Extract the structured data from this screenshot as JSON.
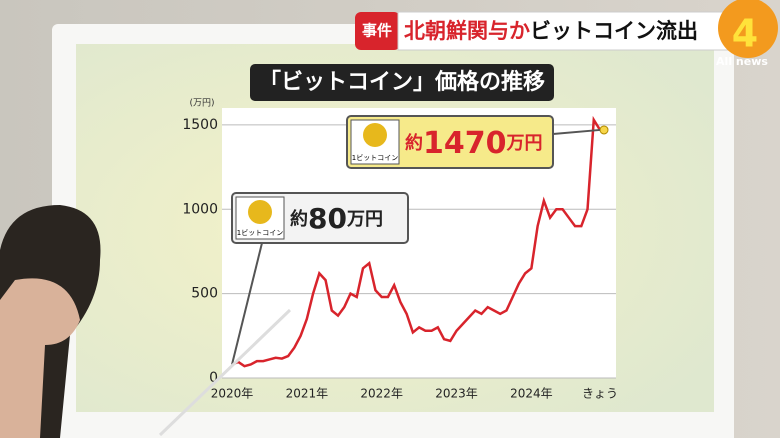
{
  "banner": {
    "tag": "事件",
    "headline_red": "北朝鮮関与か",
    "headline_black": "ビットコイン流出"
  },
  "logo": {
    "number": "4",
    "text": "All news"
  },
  "chart_data": {
    "type": "line",
    "title": "「ビットコイン」価格の推移",
    "y_unit": "(万円)",
    "categories": [
      "2020年",
      null,
      null,
      null,
      null,
      null,
      null,
      null,
      null,
      null,
      null,
      null,
      "2021年",
      null,
      null,
      null,
      null,
      null,
      null,
      null,
      null,
      null,
      null,
      null,
      "2022年",
      null,
      null,
      null,
      null,
      null,
      null,
      null,
      null,
      null,
      null,
      null,
      "2023年",
      null,
      null,
      null,
      null,
      null,
      null,
      null,
      null,
      null,
      null,
      null,
      "2024年",
      null,
      null,
      null,
      null,
      null,
      null,
      null,
      null,
      null,
      null,
      "きょう"
    ],
    "series": [
      {
        "name": "ビットコイン価格",
        "color": "#d8242c",
        "values": [
          80,
          95,
          70,
          80,
          100,
          100,
          110,
          120,
          115,
          130,
          180,
          250,
          350,
          500,
          620,
          580,
          400,
          370,
          420,
          500,
          480,
          650,
          680,
          520,
          480,
          480,
          550,
          450,
          380,
          270,
          300,
          280,
          280,
          300,
          230,
          220,
          280,
          320,
          360,
          400,
          380,
          420,
          400,
          380,
          400,
          480,
          560,
          620,
          650,
          900,
          1050,
          950,
          1000,
          1000,
          950,
          900,
          900,
          1000,
          1530,
          1470
        ]
      }
    ],
    "ylim": [
      0,
      1600
    ],
    "yticks": [
      0,
      500,
      1000,
      1500
    ],
    "grid": true,
    "annotations": [
      {
        "unit": "1ビットコイン",
        "prefix": "約",
        "number": "80",
        "suffix": "万円"
      },
      {
        "unit": "1ビットコイン",
        "prefix": "約",
        "number": "1470",
        "suffix": "万円"
      }
    ]
  }
}
